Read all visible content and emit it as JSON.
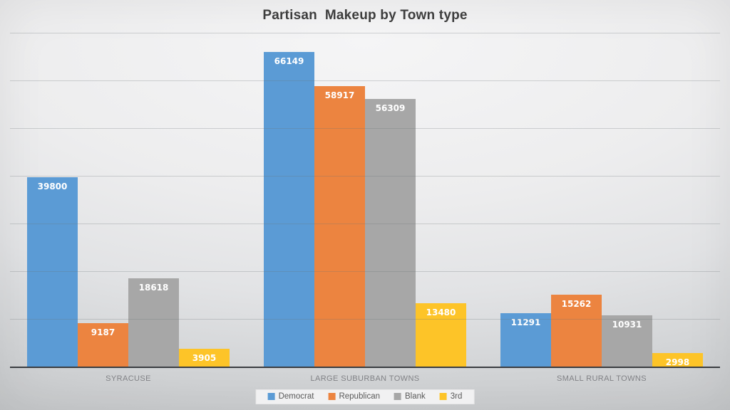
{
  "title": "Partisan  Makeup by Town type",
  "chart_data": {
    "type": "bar",
    "title": "Partisan Makeup by Town type",
    "categories": [
      "SYRACUSE",
      "LARGE SUBURBAN TOWNS",
      "SMALL RURAL TOWNS"
    ],
    "series": [
      {
        "name": "Democrat",
        "color": "#5B9BD5",
        "values": [
          39800,
          66149,
          11291
        ]
      },
      {
        "name": "Republican",
        "color": "#EC8440",
        "values": [
          9187,
          58917,
          15262
        ]
      },
      {
        "name": "Blank",
        "color": "#A7A7A7",
        "values": [
          18618,
          56309,
          10931
        ]
      },
      {
        "name": "3rd",
        "color": "#FDC428",
        "values": [
          3905,
          13480,
          2998
        ]
      }
    ],
    "ylim": [
      0,
      70000
    ],
    "gridline_step": 10000,
    "grid": true,
    "y_axis_labels_visible": false,
    "data_labels_position": "inside-end",
    "legend_position": "bottom"
  },
  "colors": {
    "background_top": "#f5f5f6",
    "background_bottom": "#c5c7c9",
    "gridline": "rgba(108,114,120,0.28)",
    "axis_line": "#3a3d41",
    "title_text": "#3d3d3d",
    "category_text": "#818286",
    "legend_text": "#595959",
    "legend_background": "#f1f1f2",
    "data_label_text": "#ffffff"
  }
}
